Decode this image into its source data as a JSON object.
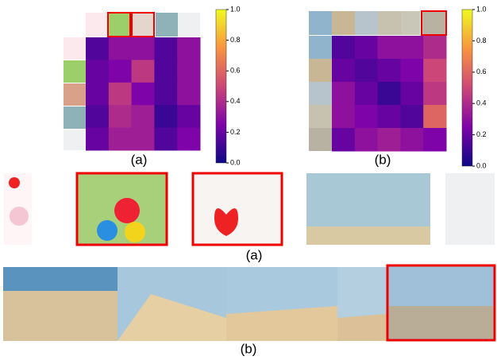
{
  "chart_data": [
    {
      "type": "heatmap",
      "caption": "(a)",
      "colormap": "plasma",
      "matrix": [
        [
          0.15,
          0.3,
          0.3,
          0.15,
          0.3
        ],
        [
          0.2,
          0.25,
          0.45,
          0.15,
          0.3
        ],
        [
          0.2,
          0.45,
          0.25,
          0.15,
          0.3
        ],
        [
          0.15,
          0.4,
          0.35,
          0.1,
          0.2
        ],
        [
          0.2,
          0.35,
          0.35,
          0.15,
          0.25
        ]
      ],
      "zlim": [
        0,
        1
      ],
      "zticks": [
        {
          "value": 0,
          "label": "0.0"
        },
        {
          "value": 0.2,
          "label": "0.2"
        },
        {
          "value": 0.4,
          "label": "0.4"
        },
        {
          "value": 0.6,
          "label": "0.6"
        },
        {
          "value": 0.8,
          "label": "0.8"
        },
        {
          "value": 1,
          "label": "1.0"
        }
      ]
    },
    {
      "type": "heatmap",
      "caption": "(b)",
      "colormap": "plasma",
      "matrix": [
        [
          0.15,
          0.2,
          0.3,
          0.3,
          0.4
        ],
        [
          0.2,
          0.15,
          0.2,
          0.25,
          0.5
        ],
        [
          0.3,
          0.2,
          0.1,
          0.2,
          0.45
        ],
        [
          0.3,
          0.25,
          0.2,
          0.15,
          0.6
        ],
        [
          0.2,
          0.3,
          0.35,
          0.3,
          0.25
        ]
      ],
      "zlim": [
        0,
        1
      ],
      "zticks": [
        {
          "value": 0,
          "label": "0.0"
        },
        {
          "value": 0.2,
          "label": "0.2"
        },
        {
          "value": 0.4,
          "label": "0.4"
        },
        {
          "value": 0.6,
          "label": "0.6"
        },
        {
          "value": 0.8,
          "label": "0.8"
        },
        {
          "value": 1,
          "label": "1.0"
        }
      ]
    }
  ],
  "figure_captions": [
    "(a)",
    "(b)"
  ]
}
